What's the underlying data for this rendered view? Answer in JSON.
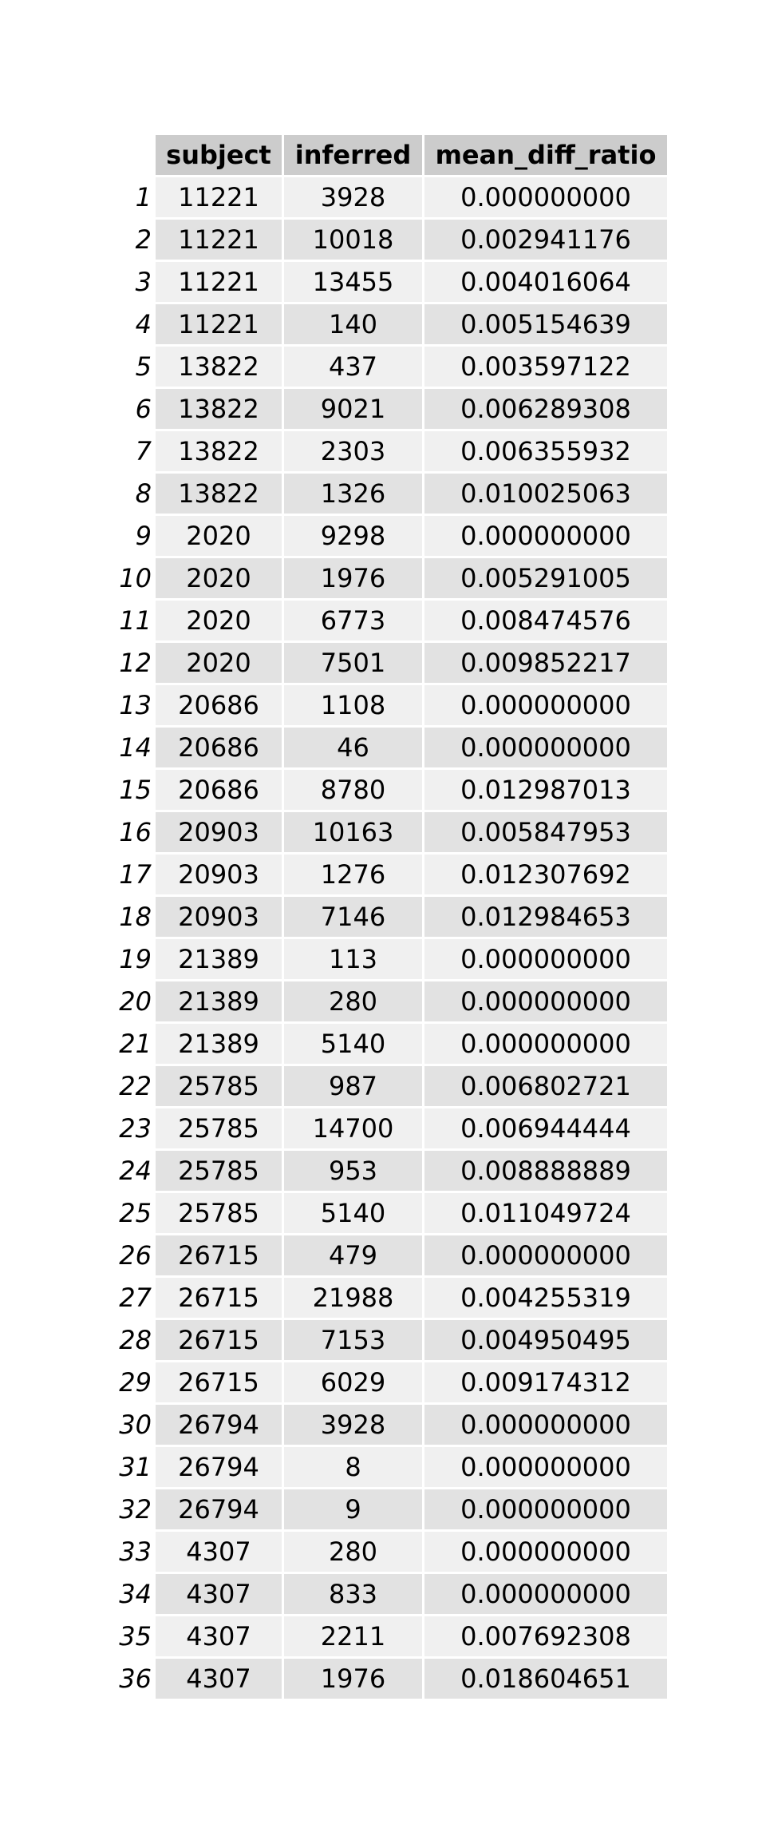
{
  "table": {
    "columns": [
      "subject",
      "inferred",
      "mean_diff_ratio"
    ],
    "rows": [
      {
        "index": "1",
        "subject": "11221",
        "inferred": "3928",
        "mean_diff_ratio": "0.000000000"
      },
      {
        "index": "2",
        "subject": "11221",
        "inferred": "10018",
        "mean_diff_ratio": "0.002941176"
      },
      {
        "index": "3",
        "subject": "11221",
        "inferred": "13455",
        "mean_diff_ratio": "0.004016064"
      },
      {
        "index": "4",
        "subject": "11221",
        "inferred": "140",
        "mean_diff_ratio": "0.005154639"
      },
      {
        "index": "5",
        "subject": "13822",
        "inferred": "437",
        "mean_diff_ratio": "0.003597122"
      },
      {
        "index": "6",
        "subject": "13822",
        "inferred": "9021",
        "mean_diff_ratio": "0.006289308"
      },
      {
        "index": "7",
        "subject": "13822",
        "inferred": "2303",
        "mean_diff_ratio": "0.006355932"
      },
      {
        "index": "8",
        "subject": "13822",
        "inferred": "1326",
        "mean_diff_ratio": "0.010025063"
      },
      {
        "index": "9",
        "subject": "2020",
        "inferred": "9298",
        "mean_diff_ratio": "0.000000000"
      },
      {
        "index": "10",
        "subject": "2020",
        "inferred": "1976",
        "mean_diff_ratio": "0.005291005"
      },
      {
        "index": "11",
        "subject": "2020",
        "inferred": "6773",
        "mean_diff_ratio": "0.008474576"
      },
      {
        "index": "12",
        "subject": "2020",
        "inferred": "7501",
        "mean_diff_ratio": "0.009852217"
      },
      {
        "index": "13",
        "subject": "20686",
        "inferred": "1108",
        "mean_diff_ratio": "0.000000000"
      },
      {
        "index": "14",
        "subject": "20686",
        "inferred": "46",
        "mean_diff_ratio": "0.000000000"
      },
      {
        "index": "15",
        "subject": "20686",
        "inferred": "8780",
        "mean_diff_ratio": "0.012987013"
      },
      {
        "index": "16",
        "subject": "20903",
        "inferred": "10163",
        "mean_diff_ratio": "0.005847953"
      },
      {
        "index": "17",
        "subject": "20903",
        "inferred": "1276",
        "mean_diff_ratio": "0.012307692"
      },
      {
        "index": "18",
        "subject": "20903",
        "inferred": "7146",
        "mean_diff_ratio": "0.012984653"
      },
      {
        "index": "19",
        "subject": "21389",
        "inferred": "113",
        "mean_diff_ratio": "0.000000000"
      },
      {
        "index": "20",
        "subject": "21389",
        "inferred": "280",
        "mean_diff_ratio": "0.000000000"
      },
      {
        "index": "21",
        "subject": "21389",
        "inferred": "5140",
        "mean_diff_ratio": "0.000000000"
      },
      {
        "index": "22",
        "subject": "25785",
        "inferred": "987",
        "mean_diff_ratio": "0.006802721"
      },
      {
        "index": "23",
        "subject": "25785",
        "inferred": "14700",
        "mean_diff_ratio": "0.006944444"
      },
      {
        "index": "24",
        "subject": "25785",
        "inferred": "953",
        "mean_diff_ratio": "0.008888889"
      },
      {
        "index": "25",
        "subject": "25785",
        "inferred": "5140",
        "mean_diff_ratio": "0.011049724"
      },
      {
        "index": "26",
        "subject": "26715",
        "inferred": "479",
        "mean_diff_ratio": "0.000000000"
      },
      {
        "index": "27",
        "subject": "26715",
        "inferred": "21988",
        "mean_diff_ratio": "0.004255319"
      },
      {
        "index": "28",
        "subject": "26715",
        "inferred": "7153",
        "mean_diff_ratio": "0.004950495"
      },
      {
        "index": "29",
        "subject": "26715",
        "inferred": "6029",
        "mean_diff_ratio": "0.009174312"
      },
      {
        "index": "30",
        "subject": "26794",
        "inferred": "3928",
        "mean_diff_ratio": "0.000000000"
      },
      {
        "index": "31",
        "subject": "26794",
        "inferred": "8",
        "mean_diff_ratio": "0.000000000"
      },
      {
        "index": "32",
        "subject": "26794",
        "inferred": "9",
        "mean_diff_ratio": "0.000000000"
      },
      {
        "index": "33",
        "subject": "4307",
        "inferred": "280",
        "mean_diff_ratio": "0.000000000"
      },
      {
        "index": "34",
        "subject": "4307",
        "inferred": "833",
        "mean_diff_ratio": "0.000000000"
      },
      {
        "index": "35",
        "subject": "4307",
        "inferred": "2211",
        "mean_diff_ratio": "0.007692308"
      },
      {
        "index": "36",
        "subject": "4307",
        "inferred": "1976",
        "mean_diff_ratio": "0.018604651"
      }
    ]
  }
}
